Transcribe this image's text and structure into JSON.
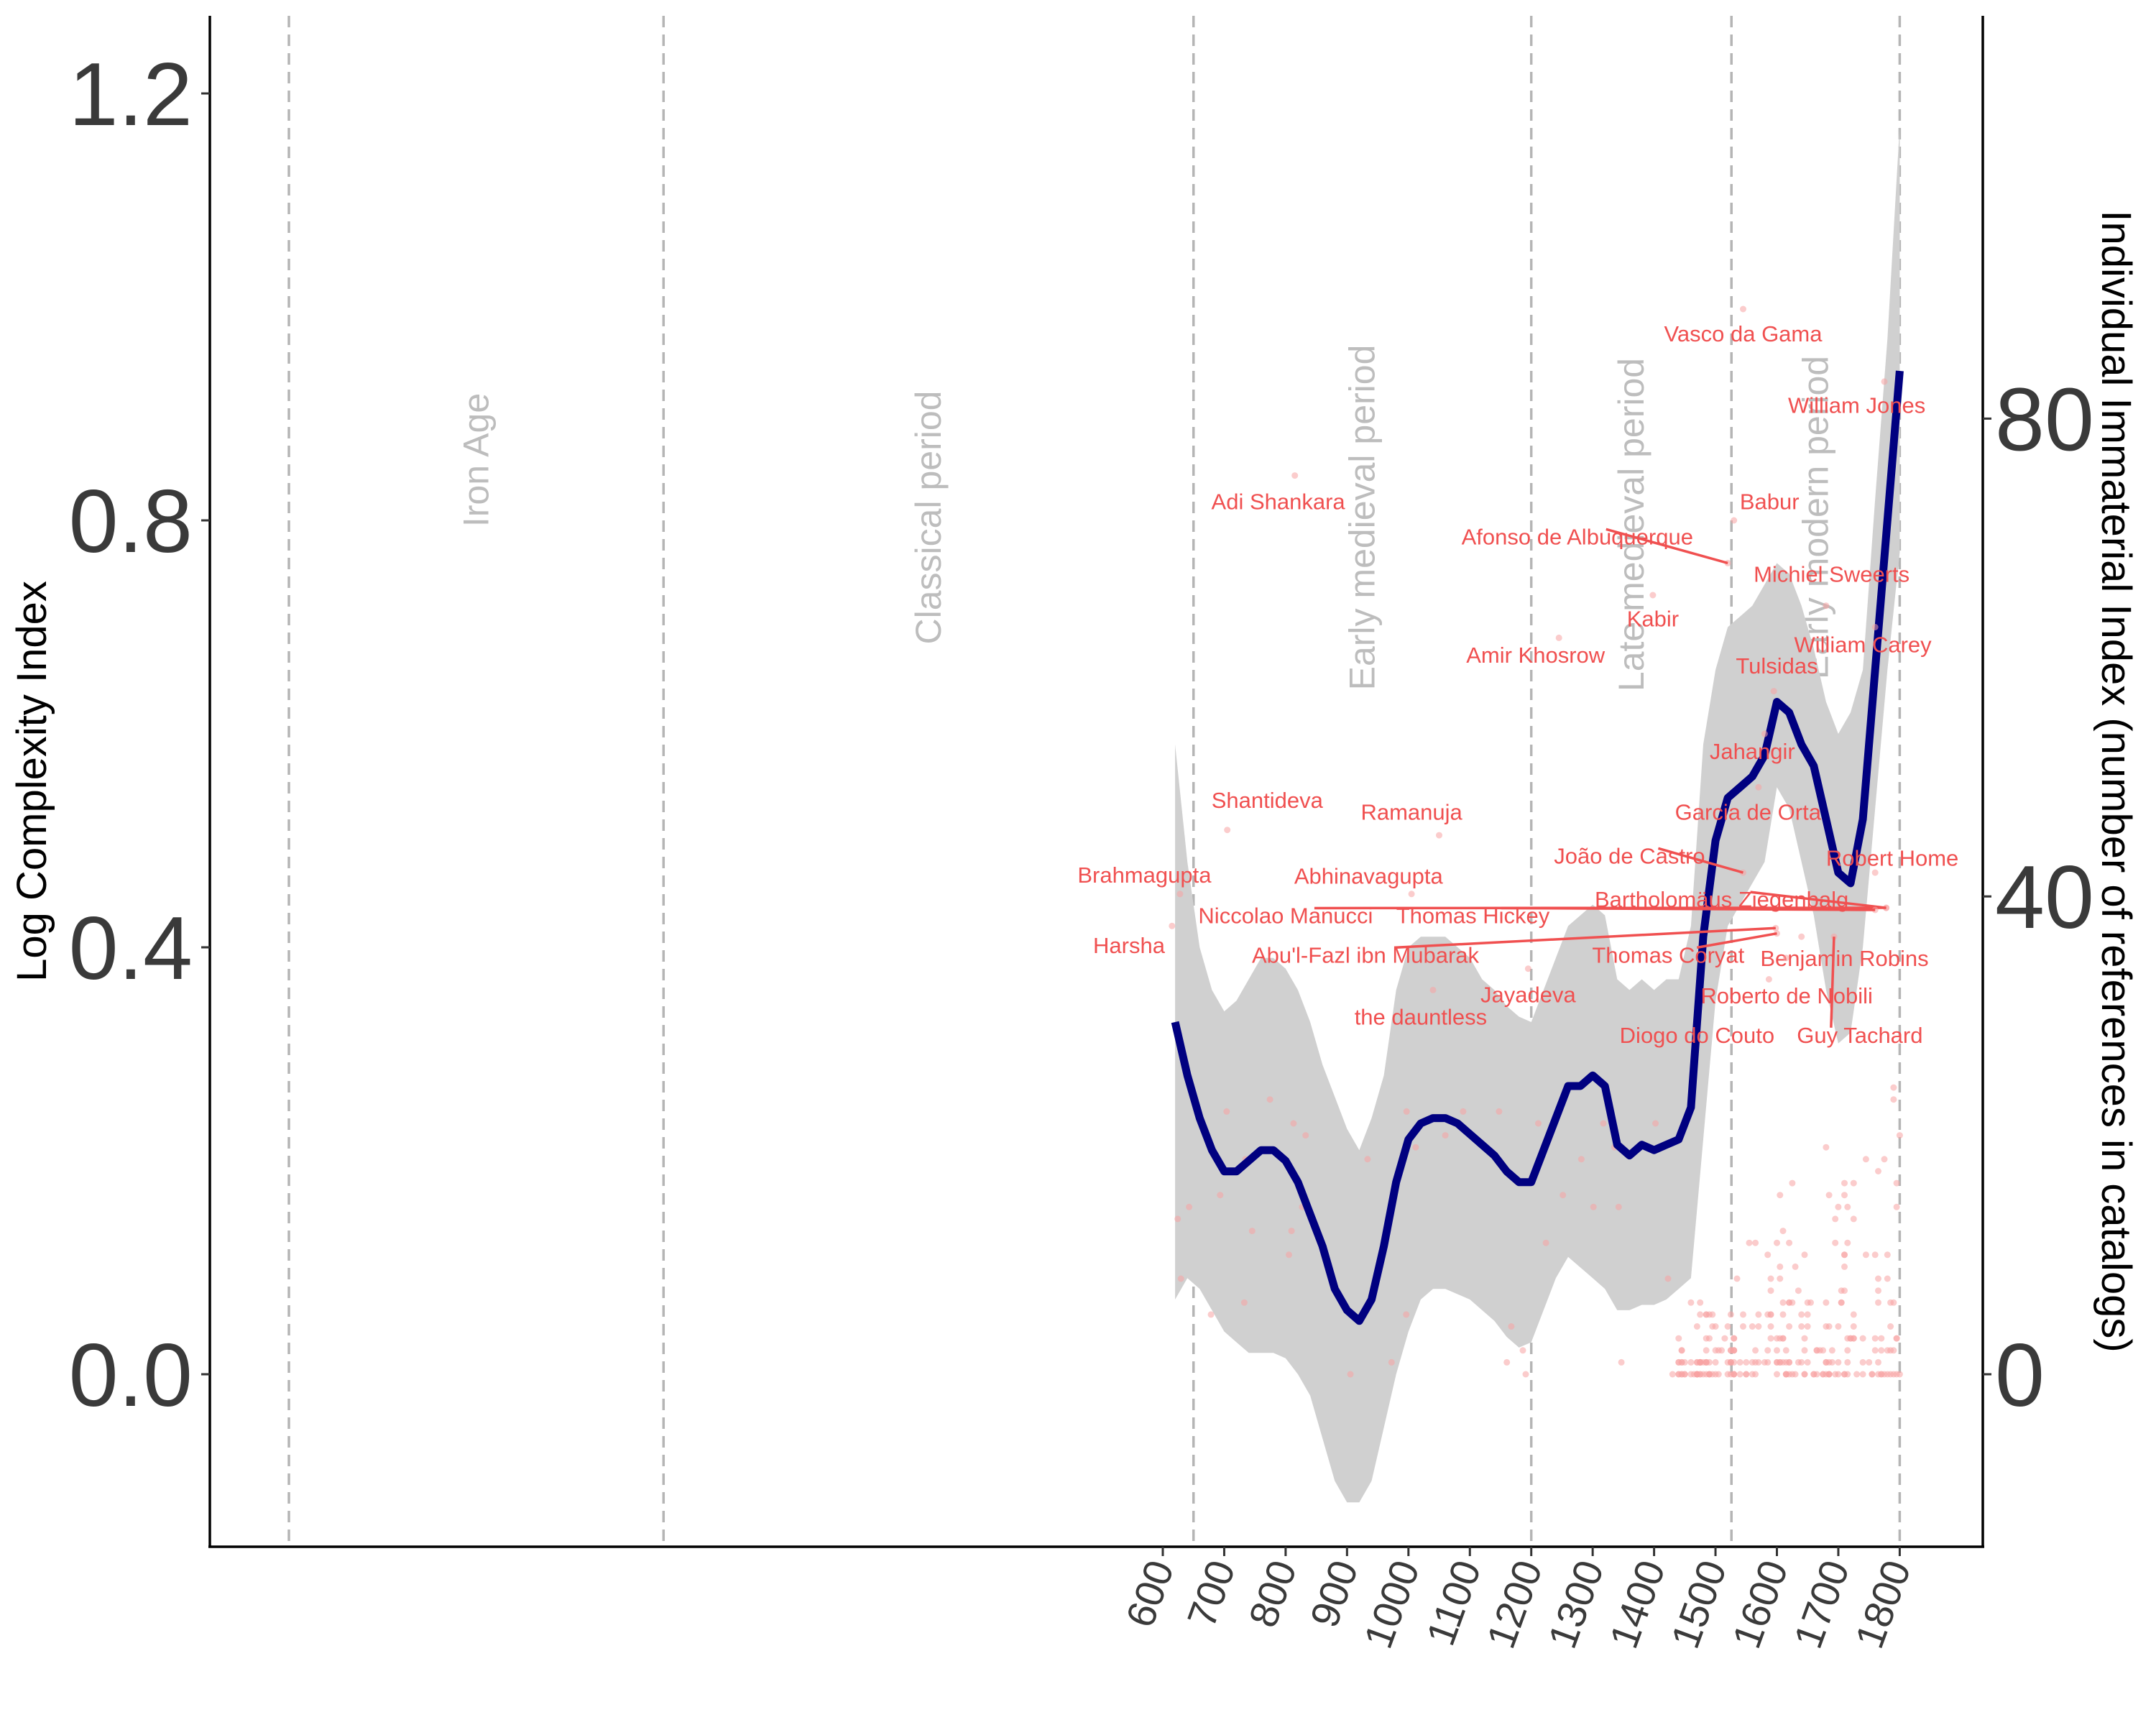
{
  "chart_data": {
    "type": "line",
    "ylabel_left": "Log Complexity Index",
    "ylabel_right": "Individual Immaterial Index (number of references in catalogs)",
    "left_axis": {
      "ticks": [
        0.0,
        0.4,
        0.8,
        1.2
      ],
      "tick_labels": [
        "0.0",
        "0.4",
        "0.8",
        "1.2"
      ],
      "ylim": [
        -0.13,
        1.27
      ]
    },
    "right_axis": {
      "ticks": [
        0,
        40,
        80
      ],
      "tick_labels": [
        "0",
        "40",
        "80"
      ]
    },
    "x_axis": {
      "ticks": [
        600,
        700,
        800,
        900,
        1000,
        1100,
        1200,
        1300,
        1400,
        1500,
        1600,
        1700,
        1800
      ],
      "tick_labels": [
        "600",
        "700",
        "800",
        "900",
        "1000",
        "1100",
        "1200",
        "1300",
        "1400",
        "1500",
        "1600",
        "1700",
        "1800"
      ]
    },
    "periods": [
      {
        "label": "Iron Age",
        "start": -1200
      },
      {
        "label": "Classical period",
        "start": -200
      },
      {
        "label": "Early medieval period",
        "start": 650
      },
      {
        "label": "Late medieval period",
        "start": 1200
      },
      {
        "label": "Early modern period",
        "start": 1526
      }
    ],
    "period_end": 1800,
    "series": [
      {
        "x": [
          620,
          640,
          660,
          680,
          700,
          720,
          740,
          760,
          780,
          800,
          820,
          840,
          860,
          880,
          900,
          920,
          940,
          960,
          980,
          1000,
          1020,
          1040,
          1060,
          1080,
          1100,
          1120,
          1140,
          1160,
          1180,
          1200,
          1220,
          1240,
          1260,
          1280,
          1300,
          1320,
          1340,
          1360,
          1380,
          1400,
          1420,
          1440,
          1460,
          1480,
          1500,
          1520,
          1540,
          1560,
          1580,
          1600,
          1620,
          1640,
          1660,
          1680,
          1700,
          1720,
          1740,
          1760,
          1780,
          1800
        ],
        "values": [
          0.33,
          0.28,
          0.24,
          0.21,
          0.19,
          0.19,
          0.2,
          0.21,
          0.21,
          0.2,
          0.18,
          0.15,
          0.12,
          0.08,
          0.06,
          0.05,
          0.07,
          0.12,
          0.18,
          0.22,
          0.235,
          0.24,
          0.24,
          0.235,
          0.225,
          0.215,
          0.205,
          0.19,
          0.18,
          0.18,
          0.21,
          0.24,
          0.27,
          0.27,
          0.28,
          0.27,
          0.215,
          0.205,
          0.215,
          0.21,
          0.215,
          0.22,
          0.25,
          0.41,
          0.5,
          0.54,
          0.55,
          0.56,
          0.58,
          0.63,
          0.62,
          0.59,
          0.57,
          0.52,
          0.47,
          0.46,
          0.52,
          0.66,
          0.8,
          0.94
        ],
        "lower": [
          0.07,
          0.09,
          0.08,
          0.06,
          0.04,
          0.03,
          0.02,
          0.02,
          0.02,
          0.015,
          0.0,
          -0.02,
          -0.06,
          -0.1,
          -0.12,
          -0.12,
          -0.1,
          -0.05,
          0.0,
          0.04,
          0.07,
          0.08,
          0.08,
          0.075,
          0.07,
          0.06,
          0.05,
          0.035,
          0.025,
          0.03,
          0.06,
          0.09,
          0.11,
          0.1,
          0.09,
          0.08,
          0.06,
          0.06,
          0.065,
          0.065,
          0.07,
          0.08,
          0.09,
          0.22,
          0.35,
          0.42,
          0.44,
          0.46,
          0.48,
          0.55,
          0.53,
          0.48,
          0.43,
          0.36,
          0.31,
          0.32,
          0.4,
          0.53,
          0.66,
          0.77
        ],
        "upper": [
          0.59,
          0.48,
          0.4,
          0.36,
          0.34,
          0.35,
          0.37,
          0.39,
          0.39,
          0.38,
          0.36,
          0.33,
          0.29,
          0.26,
          0.23,
          0.21,
          0.24,
          0.28,
          0.36,
          0.4,
          0.41,
          0.41,
          0.41,
          0.4,
          0.39,
          0.37,
          0.36,
          0.345,
          0.335,
          0.33,
          0.36,
          0.39,
          0.42,
          0.43,
          0.44,
          0.43,
          0.37,
          0.36,
          0.37,
          0.36,
          0.37,
          0.37,
          0.42,
          0.59,
          0.66,
          0.7,
          0.71,
          0.72,
          0.74,
          0.76,
          0.75,
          0.72,
          0.68,
          0.63,
          0.6,
          0.62,
          0.66,
          0.82,
          0.97,
          1.17
        ]
      }
    ],
    "annotations": [
      {
        "label": "Vasco da Gama",
        "x": 1545,
        "y": 0.975,
        "point_x": 1545,
        "point_y": 0.998
      },
      {
        "label": "William Jones",
        "x": 1730,
        "y": 0.908,
        "point_x": 1775,
        "point_y": 0.93
      },
      {
        "label": "Adi Shankara",
        "x": 788,
        "y": 0.818,
        "point_x": 815,
        "point_y": 0.842
      },
      {
        "label": "Babur",
        "x": 1588,
        "y": 0.818,
        "point_x": 1530,
        "point_y": 0.8
      },
      {
        "label": "Afonso de Albuquerque",
        "x": 1275,
        "y": 0.785,
        "point_x": 1520,
        "point_y": 0.76
      },
      {
        "label": "Michiel Sweerts",
        "x": 1689,
        "y": 0.75,
        "point_x": 1680,
        "point_y": 0.72
      },
      {
        "label": "Kabir",
        "x": 1398,
        "y": 0.708,
        "point_x": 1398,
        "point_y": 0.73
      },
      {
        "label": "William Carey",
        "x": 1740,
        "y": 0.684,
        "point_x": 1760,
        "point_y": 0.7
      },
      {
        "label": "Amir Khosrow",
        "x": 1207,
        "y": 0.674,
        "point_x": 1245,
        "point_y": 0.69
      },
      {
        "label": "Tulsidas",
        "x": 1600,
        "y": 0.664,
        "point_x": 1595,
        "point_y": 0.64
      },
      {
        "label": "Jahangir",
        "x": 1560,
        "y": 0.584,
        "point_x": 1580,
        "point_y": 0.6
      },
      {
        "label": "Shantideva",
        "x": 770,
        "y": 0.538,
        "point_x": 705,
        "point_y": 0.51
      },
      {
        "label": "Ramanuja",
        "x": 1005,
        "y": 0.527,
        "point_x": 1050,
        "point_y": 0.505
      },
      {
        "label": "Garcia de Orta",
        "x": 1553,
        "y": 0.527,
        "point_x": 1570,
        "point_y": 0.55
      },
      {
        "label": "João de Castro",
        "x": 1360,
        "y": 0.486,
        "point_x": 1545,
        "point_y": 0.47
      },
      {
        "label": "Robert Home",
        "x": 1788,
        "y": 0.484,
        "point_x": 1760,
        "point_y": 0.47
      },
      {
        "label": "Brahmagupta",
        "x": 570,
        "y": 0.468,
        "point_x": 628,
        "point_y": 0.45
      },
      {
        "label": "Abhinavagupta",
        "x": 935,
        "y": 0.467,
        "point_x": 1005,
        "point_y": 0.45
      },
      {
        "label": "Bartholomäus Ziegenbalg",
        "x": 1510,
        "y": 0.445,
        "point_x": 1778,
        "point_y": 0.437
      },
      {
        "label": "Niccolao Manucci",
        "x": 800,
        "y": 0.43,
        "point_x": 1778,
        "point_y": 0.437
      },
      {
        "label": "Thomas Hickey",
        "x": 1105,
        "y": 0.43,
        "point_x": 1760,
        "point_y": 0.435
      },
      {
        "label": "Harsha",
        "x": 545,
        "y": 0.402,
        "point_x": 615,
        "point_y": 0.42
      },
      {
        "label": "Abu'l-Fazl ibn Mubarak",
        "x": 930,
        "y": 0.393,
        "point_x": 1598,
        "point_y": 0.418
      },
      {
        "label": "Thomas Coryat",
        "x": 1423,
        "y": 0.393,
        "point_x": 1600,
        "point_y": 0.413
      },
      {
        "label": "Benjamin Robins",
        "x": 1710,
        "y": 0.39,
        "point_x": 1640,
        "point_y": 0.41
      },
      {
        "label": "Jayadeva",
        "x": 1195,
        "y": 0.356,
        "point_x": 1195,
        "point_y": 0.38
      },
      {
        "label": "Roberto de Nobili",
        "x": 1616,
        "y": 0.355,
        "point_x": 1615,
        "point_y": 0.39
      },
      {
        "label": "the dauntless",
        "x": 1020,
        "y": 0.335,
        "point_x": 1040,
        "point_y": 0.36
      },
      {
        "label": "Diogo do Couto",
        "x": 1470,
        "y": 0.318,
        "point_x": 1587,
        "point_y": 0.37
      },
      {
        "label": "Guy Tachard",
        "x": 1735,
        "y": 0.318,
        "point_x": 1693,
        "point_y": 0.41
      }
    ]
  }
}
